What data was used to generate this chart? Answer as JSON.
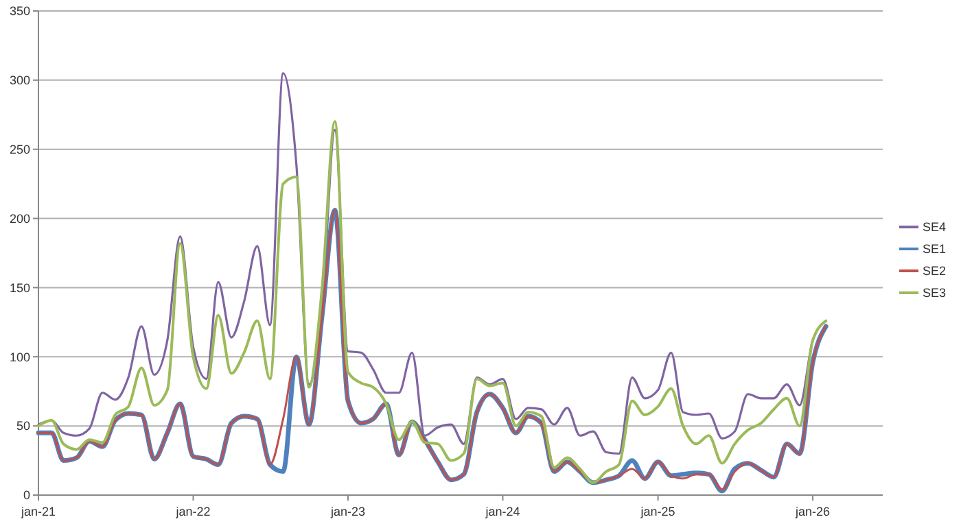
{
  "chart_data": {
    "type": "line",
    "x": [
      "2021-01",
      "2021-02",
      "2021-03",
      "2021-04",
      "2021-05",
      "2021-06",
      "2021-07",
      "2021-08",
      "2021-09",
      "2021-10",
      "2021-11",
      "2021-12",
      "2022-01",
      "2022-02",
      "2022-03",
      "2022-04",
      "2022-05",
      "2022-06",
      "2022-07",
      "2022-08",
      "2022-09",
      "2022-10",
      "2022-11",
      "2022-12",
      "2023-01",
      "2023-02",
      "2023-03",
      "2023-04",
      "2023-05",
      "2023-06",
      "2023-07",
      "2023-08",
      "2023-09",
      "2023-10",
      "2023-11",
      "2023-12",
      "2024-01",
      "2024-02",
      "2024-03",
      "2024-04",
      "2024-05",
      "2024-06",
      "2024-07",
      "2024-08",
      "2024-09",
      "2024-10",
      "2024-11",
      "2024-12",
      "2025-01",
      "2025-02",
      "2025-03",
      "2025-04",
      "2025-05",
      "2025-06",
      "2025-07",
      "2025-08",
      "2025-09",
      "2025-10",
      "2025-11",
      "2025-12",
      "2026-01",
      "2026-02"
    ],
    "series": [
      {
        "name": "SE4",
        "color": "#8064a2",
        "values": [
          51,
          54,
          45,
          43,
          48,
          74,
          69,
          85,
          122,
          87,
          112,
          187,
          107,
          84,
          154,
          114,
          140,
          180,
          123,
          305,
          240,
          80,
          135,
          264,
          104,
          103,
          91,
          74,
          74,
          103,
          43,
          49,
          51,
          37,
          85,
          80,
          84,
          55,
          63,
          62,
          51,
          63,
          43,
          46,
          31,
          30,
          85,
          70,
          76,
          103,
          60,
          58,
          59,
          41,
          46,
          73,
          70,
          70,
          80,
          65,
          112,
          126
        ]
      },
      {
        "name": "SE1",
        "color": "#4f81bd",
        "values": [
          45,
          45,
          25,
          27,
          39,
          35,
          54,
          59,
          58,
          26,
          45,
          66,
          28,
          26,
          22,
          52,
          57,
          55,
          22,
          17,
          100,
          51,
          130,
          206,
          68,
          52,
          55,
          66,
          29,
          53,
          40,
          24,
          11,
          15,
          60,
          73,
          63,
          45,
          57,
          52,
          17,
          24,
          17,
          9,
          11,
          14,
          25,
          12,
          24,
          14,
          15,
          16,
          15,
          3,
          19,
          23,
          18,
          13,
          37,
          30,
          96,
          122
        ]
      },
      {
        "name": "SE2",
        "color": "#c0504d",
        "values": [
          45,
          45,
          25,
          27,
          39,
          35,
          54,
          59,
          58,
          26,
          45,
          66,
          28,
          26,
          22,
          52,
          57,
          55,
          22,
          55,
          100,
          51,
          130,
          206,
          68,
          52,
          55,
          66,
          29,
          53,
          40,
          24,
          11,
          15,
          60,
          73,
          63,
          45,
          57,
          52,
          17,
          24,
          17,
          9,
          11,
          14,
          19,
          12,
          24,
          14,
          12,
          15,
          15,
          4,
          17,
          23,
          18,
          13,
          37,
          30,
          96,
          122
        ]
      },
      {
        "name": "SE3",
        "color": "#9bbb59",
        "values": [
          50,
          54,
          37,
          33,
          40,
          38,
          58,
          64,
          92,
          65,
          76,
          182,
          100,
          77,
          130,
          88,
          103,
          126,
          84,
          225,
          230,
          78,
          150,
          270,
          89,
          81,
          78,
          66,
          40,
          53,
          38,
          37,
          25,
          30,
          84,
          79,
          81,
          50,
          60,
          57,
          20,
          27,
          19,
          9,
          17,
          22,
          68,
          58,
          64,
          77,
          50,
          37,
          43,
          23,
          37,
          47,
          52,
          62,
          70,
          50,
          112,
          126
        ]
      }
    ],
    "xlim": [
      "2021-01",
      "2026-06-15"
    ],
    "xticks": [
      {
        "value": "2021-01",
        "label": "jan-21"
      },
      {
        "value": "2022-01",
        "label": "jan-22"
      },
      {
        "value": "2023-01",
        "label": "jan-23"
      },
      {
        "value": "2024-01",
        "label": "jan-24"
      },
      {
        "value": "2025-01",
        "label": "jan-25"
      },
      {
        "value": "2026-01",
        "label": "jan-26"
      }
    ],
    "ylim": [
      0,
      350
    ],
    "yticks": [
      0,
      50,
      100,
      150,
      200,
      250,
      300,
      350
    ],
    "grid": "y",
    "legend": "right",
    "marker": "none",
    "line_style": "solid"
  }
}
